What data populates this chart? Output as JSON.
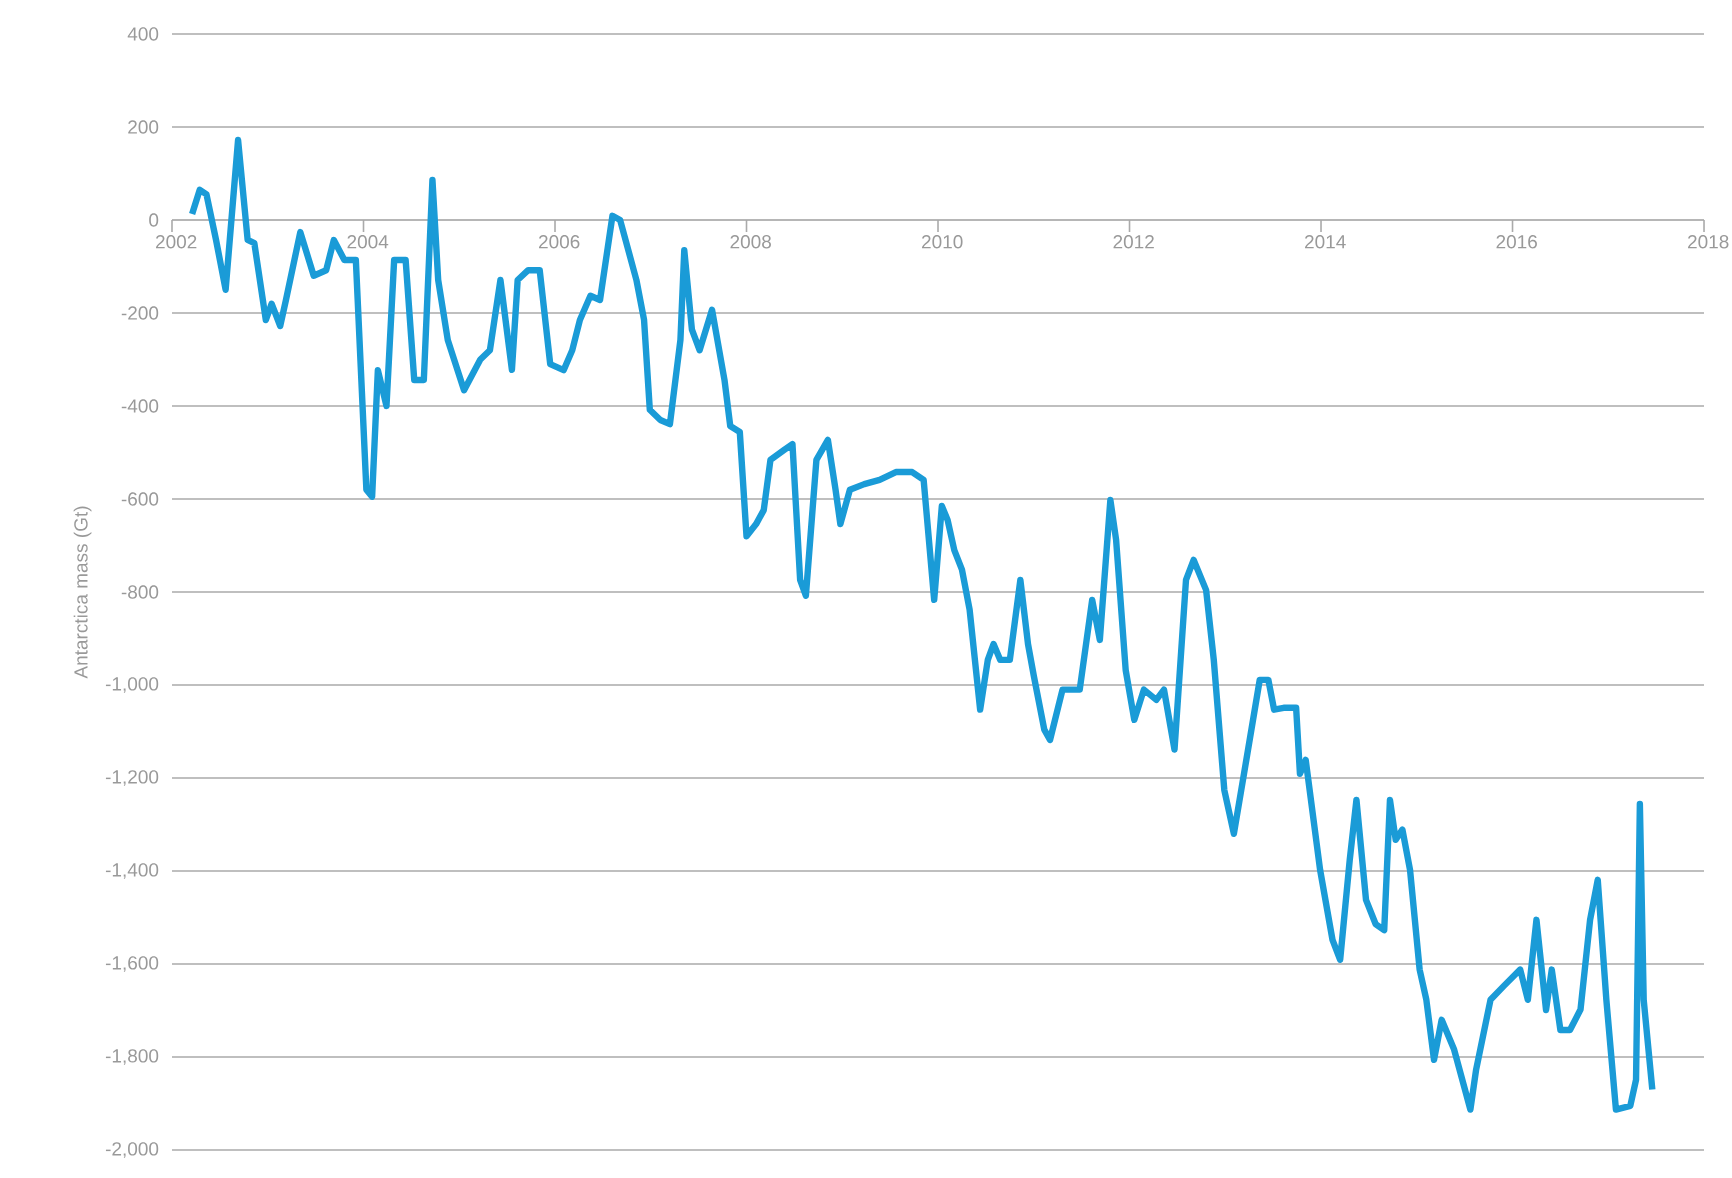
{
  "chart_data": {
    "type": "line",
    "ylabel": "Antarctica mass (Gt)",
    "color": "#1a9bd7",
    "grid": "y",
    "xlim": [
      2002,
      2018
    ],
    "xticks": [
      2002,
      2004,
      2006,
      2008,
      2010,
      2012,
      2014,
      2016,
      2018
    ],
    "ylim": [
      -2000,
      400
    ],
    "yticks": [
      400,
      200,
      0,
      -200,
      -400,
      -600,
      -800,
      {
        "value": -1000,
        "label": "-1,000"
      },
      {
        "value": -1200,
        "label": "-1,200"
      },
      {
        "value": -1400,
        "label": "-1,400"
      },
      {
        "value": -1600,
        "label": "-1,600"
      },
      {
        "value": -1800,
        "label": "-1,800"
      },
      {
        "value": -2000,
        "label": "-2,000"
      }
    ],
    "x": [
      2002.21,
      2002.29,
      2002.36,
      2002.46,
      2002.56,
      2002.69,
      2002.79,
      2002.86,
      2002.98,
      2003.04,
      2003.13,
      2003.19,
      2003.34,
      2003.48,
      2003.61,
      2003.69,
      2003.8,
      2003.92,
      2004.03,
      2004.09,
      2004.15,
      2004.24,
      2004.32,
      2004.44,
      2004.53,
      2004.63,
      2004.72,
      2004.78,
      2004.88,
      2005.05,
      2005.22,
      2005.32,
      2005.43,
      2005.55,
      2005.61,
      2005.72,
      2005.84,
      2005.95,
      2006.09,
      2006.18,
      2006.26,
      2006.37,
      2006.47,
      2006.6,
      2006.68,
      2006.85,
      2006.93,
      2006.99,
      2007.1,
      2007.2,
      2007.31,
      2007.35,
      2007.43,
      2007.51,
      2007.64,
      2007.77,
      2007.83,
      2007.93,
      2008.0,
      2008.1,
      2008.18,
      2008.25,
      2008.39,
      2008.48,
      2008.56,
      2008.62,
      2008.73,
      2008.85,
      2008.93,
      2008.98,
      2009.08,
      2009.23,
      2009.39,
      2009.56,
      2009.73,
      2009.85,
      2009.96,
      2010.04,
      2010.1,
      2010.17,
      2010.25,
      2010.33,
      2010.44,
      2010.52,
      2010.58,
      2010.65,
      2010.75,
      2010.86,
      2010.94,
      2011.0,
      2011.11,
      2011.17,
      2011.3,
      2011.48,
      2011.61,
      2011.69,
      2011.8,
      2011.86,
      2011.96,
      2012.05,
      2012.15,
      2012.28,
      2012.36,
      2012.47,
      2012.59,
      2012.67,
      2012.8,
      2012.88,
      2012.99,
      2013.09,
      2013.22,
      2013.36,
      2013.45,
      2013.51,
      2013.61,
      2013.74,
      2013.78,
      2013.84,
      2013.99,
      2014.12,
      2014.2,
      2014.3,
      2014.37,
      2014.47,
      2014.57,
      2014.66,
      2014.72,
      2014.78,
      2014.85,
      2014.93,
      2015.03,
      2015.1,
      2015.18,
      2015.26,
      2015.39,
      2015.56,
      2015.62,
      2015.77,
      2015.91,
      2016.08,
      2016.16,
      2016.25,
      2016.35,
      2016.41,
      2016.5,
      2016.6,
      2016.71,
      2016.81,
      2016.89,
      2016.98,
      2017.08,
      2017.23,
      2017.29,
      2017.33,
      2017.37,
      2017.46
    ],
    "values": [
      13,
      65,
      55,
      -43,
      -150,
      172,
      -43,
      -50,
      -215,
      -180,
      -228,
      -172,
      -26,
      -120,
      -108,
      -43,
      -86,
      -86,
      -580,
      -595,
      -323,
      -400,
      -86,
      -86,
      -344,
      -344,
      86,
      -129,
      -258,
      -366,
      -300,
      -280,
      -129,
      -322,
      -129,
      -108,
      -108,
      -310,
      -323,
      -280,
      -215,
      -163,
      -172,
      9,
      0,
      -129,
      -215,
      -408,
      -430,
      -439,
      -258,
      -65,
      -236,
      -280,
      -193,
      -344,
      -443,
      -456,
      -680,
      -654,
      -624,
      -516,
      -495,
      -482,
      -774,
      -808,
      -516,
      -473,
      -580,
      -654,
      -580,
      -568,
      -559,
      -542,
      -542,
      -559,
      -817,
      -615,
      -645,
      -710,
      -752,
      -838,
      -1053,
      -946,
      -912,
      -946,
      -946,
      -774,
      -912,
      -980,
      -1096,
      -1118,
      -1010,
      -1010,
      -817,
      -903,
      -602,
      -688,
      -968,
      -1075,
      -1010,
      -1032,
      -1010,
      -1139,
      -774,
      -731,
      -796,
      -946,
      -1226,
      -1320,
      -1161,
      -989,
      -989,
      -1053,
      -1049,
      -1049,
      -1191,
      -1161,
      -1397,
      -1548,
      -1591,
      -1376,
      -1247,
      -1462,
      -1514,
      -1527,
      -1247,
      -1333,
      -1311,
      -1398,
      -1612,
      -1677,
      -1806,
      -1720,
      -1784,
      -1913,
      -1827,
      -1677,
      -1647,
      -1612,
      -1677,
      -1505,
      -1699,
      -1612,
      -1742,
      -1742,
      -1698,
      -1505,
      -1419,
      -1677,
      -1913,
      -1905,
      -1849,
      -1256,
      -1677,
      -1870
    ]
  }
}
